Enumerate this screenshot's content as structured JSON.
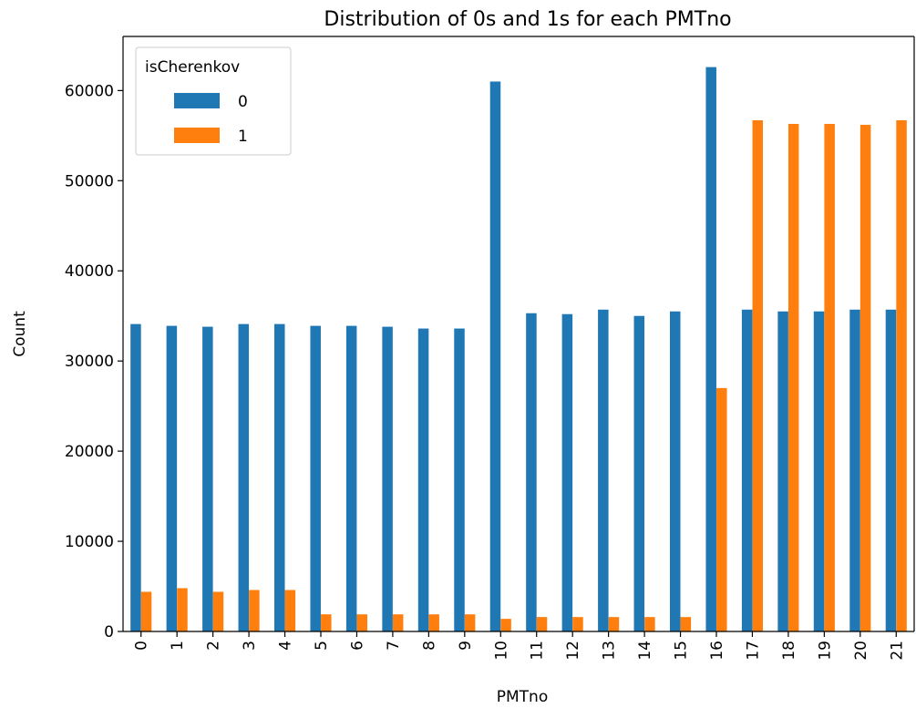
{
  "chart_data": {
    "type": "bar",
    "title": "Distribution of 0s and 1s for each PMTno",
    "xlabel": "PMTno",
    "ylabel": "Count",
    "categories": [
      "0",
      "1",
      "2",
      "3",
      "4",
      "5",
      "6",
      "7",
      "8",
      "9",
      "10",
      "11",
      "12",
      "13",
      "14",
      "15",
      "16",
      "17",
      "18",
      "19",
      "20",
      "21"
    ],
    "series": [
      {
        "name": "0",
        "color": "#1f77b4",
        "values": [
          34100,
          33900,
          33800,
          34100,
          34100,
          33900,
          33900,
          33800,
          33600,
          33600,
          61000,
          35300,
          35200,
          35700,
          35000,
          35500,
          62600,
          35700,
          35500,
          35500,
          35700,
          35700
        ]
      },
      {
        "name": "1",
        "color": "#ff7f0e",
        "values": [
          4400,
          4800,
          4400,
          4600,
          4600,
          1900,
          1900,
          1900,
          1900,
          1900,
          1400,
          1600,
          1600,
          1600,
          1600,
          1600,
          27000,
          56700,
          56300,
          56300,
          56200,
          56700
        ]
      }
    ],
    "ylim": [
      0,
      66000
    ],
    "yticks": [
      0,
      10000,
      20000,
      30000,
      40000,
      50000,
      60000
    ],
    "grid": false,
    "legend": {
      "title": "isCherenkov",
      "placement": "top-left"
    }
  }
}
